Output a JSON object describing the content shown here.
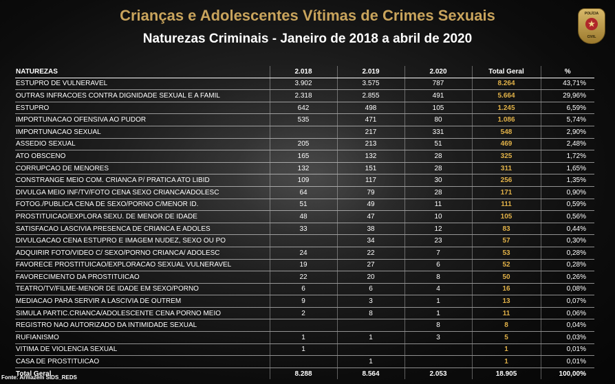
{
  "title": "Crianças e Adolescentes Vítimas de Crimes Sexuais",
  "subtitle": "Naturezas Criminais - Janeiro de 2018 a abril de 2020",
  "badge": {
    "top": "POLÍCIA",
    "bottom": "CIVIL"
  },
  "table": {
    "headers": [
      "NATUREZAS",
      "2.018",
      "2.019",
      "2.020",
      "Total Geral",
      "%"
    ],
    "rows": [
      [
        "ESTUPRO DE VULNERAVEL",
        "3.902",
        "3.575",
        "787",
        "8.264",
        "43,71%"
      ],
      [
        "OUTRAS INFRACOES CONTRA DIGNIDADE SEXUAL E A FAMIL",
        "2.318",
        "2.855",
        "491",
        "5.664",
        "29,96%"
      ],
      [
        "ESTUPRO",
        "642",
        "498",
        "105",
        "1.245",
        "6,59%"
      ],
      [
        "IMPORTUNACAO OFENSIVA AO PUDOR",
        "535",
        "471",
        "80",
        "1.086",
        "5,74%"
      ],
      [
        "IMPORTUNACAO SEXUAL",
        "",
        "217",
        "331",
        "548",
        "2,90%"
      ],
      [
        "ASSEDIO SEXUAL",
        "205",
        "213",
        "51",
        "469",
        "2,48%"
      ],
      [
        "ATO OBSCENO",
        "165",
        "132",
        "28",
        "325",
        "1,72%"
      ],
      [
        "CORRUPCAO DE MENORES",
        "132",
        "151",
        "28",
        "311",
        "1,65%"
      ],
      [
        "CONSTRANGE  MEIO COM. CRIANCA P/ PRATICA ATO LIBID",
        "109",
        "117",
        "30",
        "256",
        "1,35%"
      ],
      [
        "DIVULGA MEIO INF/TV/FOTO CENA SEXO CRIANCA/ADOLESC",
        "64",
        "79",
        "28",
        "171",
        "0,90%"
      ],
      [
        "FOTOG./PUBLICA CENA DE SEXO/PORNO C/MENOR ID.",
        "51",
        "49",
        "11",
        "111",
        "0,59%"
      ],
      [
        "PROSTITUICAO/EXPLORA SEXU. DE MENOR DE IDADE",
        "48",
        "47",
        "10",
        "105",
        "0,56%"
      ],
      [
        "SATISFACAO  LASCIVIA  PRESENCA DE CRIANCA E ADOLES",
        "33",
        "38",
        "12",
        "83",
        "0,44%"
      ],
      [
        "DIVULGACAO CENA ESTUPRO E IMAGEM NUDEZ, SEXO OU PO",
        "",
        "34",
        "23",
        "57",
        "0,30%"
      ],
      [
        "ADQUIRIR FOTO/VIDEO C/ SEXO/PORNO CRIANCA/ ADOLESC",
        "24",
        "22",
        "7",
        "53",
        "0,28%"
      ],
      [
        "FAVORECE PROSTITUICAO/EXPLORACAO SEXUAL VULNERAVEL",
        "19",
        "27",
        "6",
        "52",
        "0,28%"
      ],
      [
        "FAVORECIMENTO DA PROSTITUICAO",
        "22",
        "20",
        "8",
        "50",
        "0,26%"
      ],
      [
        "TEATRO/TV/FILME-MENOR DE IDADE EM SEXO/PORNO",
        "6",
        "6",
        "4",
        "16",
        "0,08%"
      ],
      [
        "MEDIACAO PARA SERVIR A LASCIVIA DE OUTREM",
        "9",
        "3",
        "1",
        "13",
        "0,07%"
      ],
      [
        "SIMULA PARTIC.CRIANCA/ADOLESCENTE CENA PORNO MEIO",
        "2",
        "8",
        "1",
        "11",
        "0,06%"
      ],
      [
        "REGISTRO NAO AUTORIZADO DA INTIMIDADE SEXUAL",
        "",
        "",
        "8",
        "8",
        "0,04%"
      ],
      [
        "RUFIANISMO",
        "1",
        "1",
        "3",
        "5",
        "0,03%"
      ],
      [
        "VITIMA DE VIOLENCIA SEXUAL",
        "1",
        "",
        "",
        "1",
        "0,01%"
      ],
      [
        "CASA DE PROSTITUICAO",
        "",
        "1",
        "",
        "1",
        "0,01%"
      ]
    ],
    "total": [
      "Total Geral",
      "8.288",
      "8.564",
      "2.053",
      "18.905",
      "100,00%"
    ]
  },
  "source": "Fonte: Armazém SIDS_REDS",
  "colors": {
    "title": "#c9a45c",
    "total_geral": "#e2b248",
    "background": "#111111"
  }
}
